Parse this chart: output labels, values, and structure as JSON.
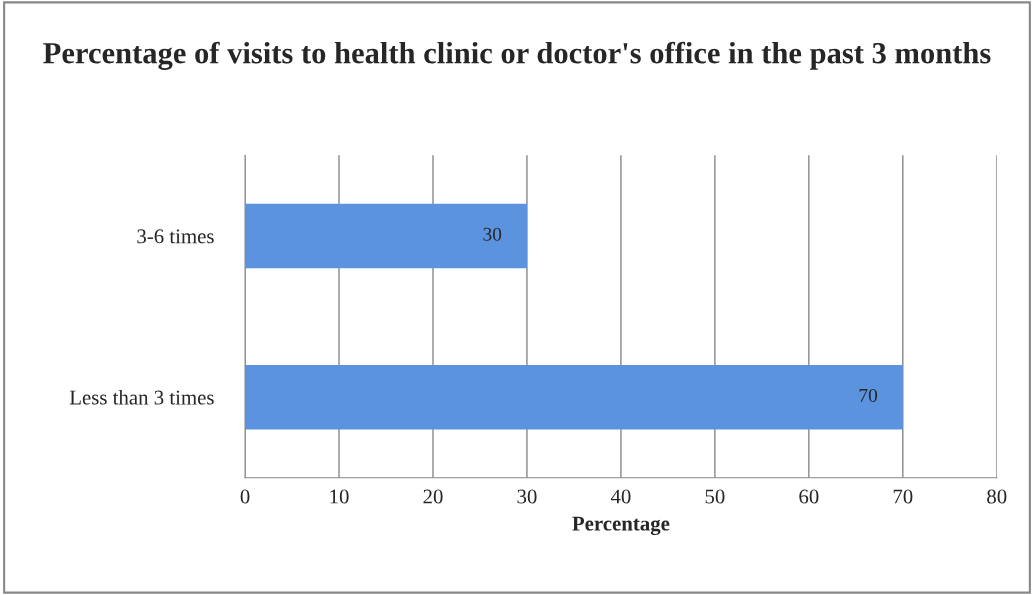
{
  "chart_data": {
    "type": "bar",
    "orientation": "horizontal",
    "title": "Percentage of visits to health clinic or doctor's office in the past 3 months",
    "categories": [
      "3-6 times",
      "Less than 3 times"
    ],
    "values": [
      30,
      70
    ],
    "color": "#5b93de",
    "xlabel": "Percentage",
    "xlim": [
      0,
      80
    ],
    "xticks": [
      0,
      10,
      20,
      30,
      40,
      50,
      60,
      70,
      80
    ],
    "grid": "x",
    "data_labels": true,
    "legend": false
  }
}
